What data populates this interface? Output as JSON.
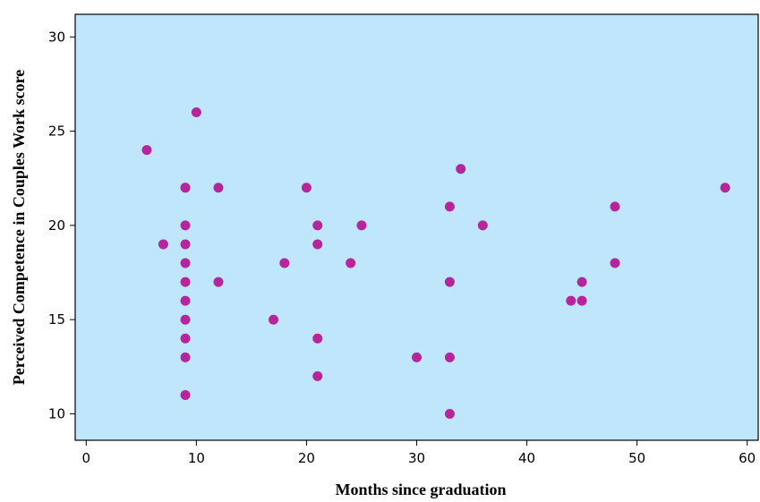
{
  "chart_data": {
    "type": "scatter",
    "title": "",
    "xlabel": "Months since graduation",
    "ylabel": "Perceived Competence in Couples Work score",
    "xlim": [
      -1,
      61
    ],
    "ylim": [
      8.6,
      31.2
    ],
    "xticks": [
      0,
      10,
      20,
      30,
      40,
      50,
      60
    ],
    "yticks": [
      10,
      15,
      20,
      25,
      30
    ],
    "grid": false,
    "legend": "none",
    "colors": {
      "plot_background": "#c0e6fc",
      "marker": "#b5259b",
      "axis": "#000000"
    },
    "series": [
      {
        "points": [
          [
            5.5,
            24
          ],
          [
            7,
            19
          ],
          [
            9,
            22
          ],
          [
            9,
            22
          ],
          [
            9,
            20
          ],
          [
            9,
            19
          ],
          [
            9,
            18
          ],
          [
            9,
            17
          ],
          [
            9,
            16
          ],
          [
            9,
            15
          ],
          [
            9,
            14
          ],
          [
            9,
            13
          ],
          [
            9,
            11
          ],
          [
            10,
            26
          ],
          [
            12,
            22
          ],
          [
            12,
            17
          ],
          [
            17,
            15
          ],
          [
            18,
            18
          ],
          [
            20,
            22
          ],
          [
            21,
            20
          ],
          [
            21,
            19
          ],
          [
            21,
            14
          ],
          [
            21,
            12
          ],
          [
            24,
            18
          ],
          [
            25,
            20
          ],
          [
            30,
            13
          ],
          [
            33,
            21
          ],
          [
            33,
            17
          ],
          [
            33,
            13
          ],
          [
            33,
            10
          ],
          [
            34,
            23
          ],
          [
            36,
            20
          ],
          [
            44,
            16
          ],
          [
            45,
            17
          ],
          [
            45,
            16
          ],
          [
            48,
            21
          ],
          [
            48,
            18
          ],
          [
            58,
            22
          ]
        ]
      }
    ]
  }
}
